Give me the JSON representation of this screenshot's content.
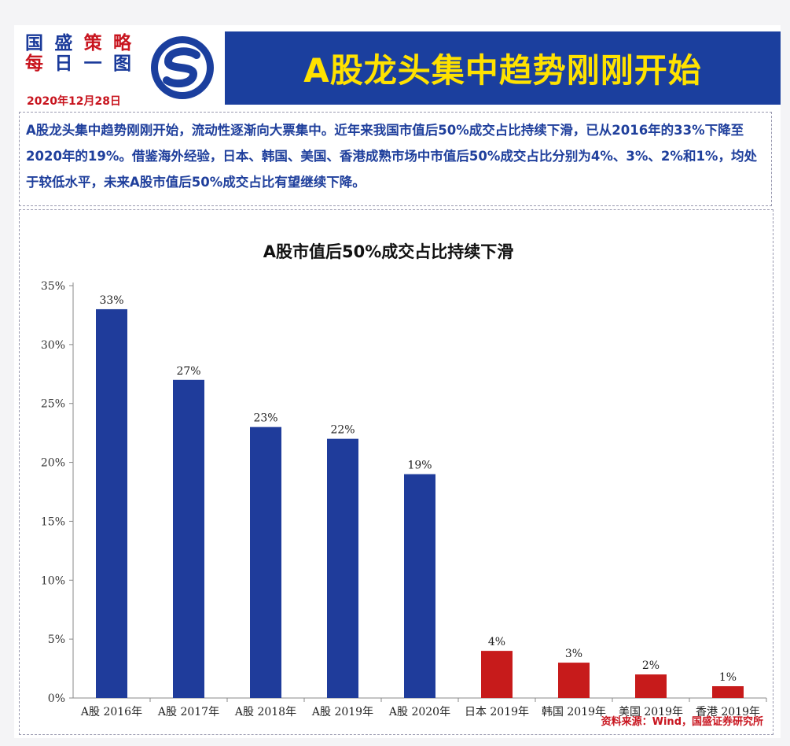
{
  "header": {
    "brand_chars_top": [
      "国",
      "盛",
      "策",
      "略"
    ],
    "brand_chars_bottom": [
      "每",
      "日",
      "一",
      "图"
    ],
    "date": "2020年12月28日",
    "banner_title": "A股龙头集中趋势刚刚开始"
  },
  "description": "A股龙头集中趋势刚刚开始，流动性逐渐向大票集中。近年来我国市值后50%成交占比持续下滑，已从2016年的33%下降至2020年的19%。借鉴海外经验，日本、韩国、美国、香港成熟市场中市值后50%成交占比分别为4%、3%、2%和1%，均处于较低水平，未来A股市值后50%成交占比有望继续下降。",
  "source": "资料来源：Wind，国盛证券研究所",
  "colors": {
    "brand_blue": "#1b3f9e",
    "title_yellow": "#ffe200",
    "bar_blue": "#1f3c9b",
    "bar_red": "#c71b1b",
    "accent_red": "#c8141e"
  },
  "chart_data": {
    "type": "bar",
    "title": "A股市值后50%成交占比持续下滑",
    "categories": [
      "A股 2016年",
      "A股 2017年",
      "A股 2018年",
      "A股 2019年",
      "A股 2020年",
      "日本 2019年",
      "韩国 2019年",
      "美国 2019年",
      "香港 2019年"
    ],
    "values": [
      33,
      27,
      23,
      22,
      19,
      4,
      3,
      2,
      1
    ],
    "data_labels": [
      "33%",
      "27%",
      "23%",
      "22%",
      "19%",
      "4%",
      "3%",
      "2%",
      "1%"
    ],
    "bar_colors": [
      "#1f3c9b",
      "#1f3c9b",
      "#1f3c9b",
      "#1f3c9b",
      "#1f3c9b",
      "#c71b1b",
      "#c71b1b",
      "#c71b1b",
      "#c71b1b"
    ],
    "yticks": [
      "0%",
      "5%",
      "10%",
      "15%",
      "20%",
      "25%",
      "30%",
      "35%"
    ],
    "ylim": [
      0,
      35
    ],
    "grid": false,
    "legend": "none"
  }
}
